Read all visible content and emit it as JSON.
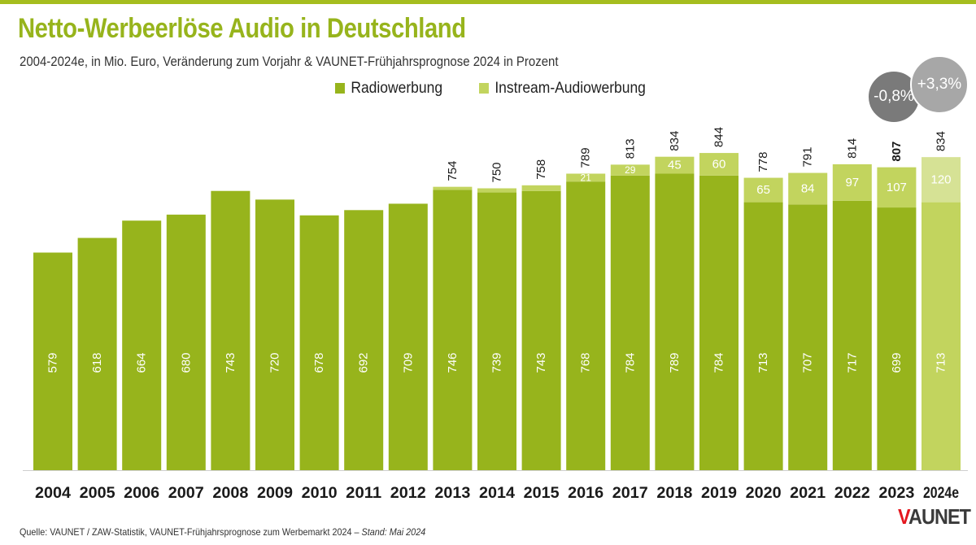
{
  "header": {
    "title": "Netto-Werbeerlöse Audio in Deutschland",
    "subtitle": "2004-2024e, in Mio. Euro, Veränderung zum Vorjahr & VAUNET-Frühjahrsprognose 2024 in Prozent"
  },
  "change_bubbles": {
    "change_2023": "-0,8%",
    "change_2024e": "+3,3%"
  },
  "footer": {
    "source": "Quelle: VAUNET / ZAW-Statistik, VAUNET-Frühjahrsprognose zum Werbemarkt 2024 – ",
    "stand": "Stand: Mai 2024",
    "logo_v": "V",
    "logo_rest": "AUNET"
  },
  "colors": {
    "radio": "#97b41c",
    "instream": "#c2d45e",
    "radio_forecast": "#c2d45e",
    "instream_forecast": "#d6e295",
    "accent_line": "#a5bd1f"
  },
  "chart_data": {
    "type": "bar",
    "stacked": true,
    "categories": [
      "2004",
      "2005",
      "2006",
      "2007",
      "2008",
      "2009",
      "2010",
      "2011",
      "2012",
      "2013",
      "2014",
      "2015",
      "2016",
      "2017",
      "2018",
      "2019",
      "2020",
      "2021",
      "2022",
      "2023",
      "2024e"
    ],
    "series": [
      {
        "name": "Radiowerbung",
        "values": [
          579,
          618,
          664,
          680,
          743,
          720,
          678,
          692,
          709,
          746,
          739,
          743,
          768,
          784,
          789,
          784,
          713,
          707,
          717,
          699,
          713
        ]
      },
      {
        "name": "Instream-Audiowerbung",
        "values": [
          null,
          null,
          null,
          null,
          null,
          null,
          null,
          null,
          null,
          8,
          11,
          15,
          21,
          29,
          45,
          60,
          65,
          84,
          97,
          107,
          120
        ]
      }
    ],
    "segment_labels_instream": [
      null,
      null,
      null,
      null,
      null,
      null,
      null,
      null,
      null,
      null,
      null,
      null,
      "21",
      "29",
      "45",
      "60",
      "65",
      "84",
      "97",
      "107",
      "120"
    ],
    "totals": [
      null,
      null,
      null,
      null,
      null,
      null,
      null,
      null,
      null,
      "754",
      "750",
      "758",
      "789",
      "813",
      "834",
      "844",
      "778",
      "791",
      "814",
      "807",
      "834"
    ],
    "emphasized_total_index": 19,
    "forecast_index": 20,
    "legend_position": "top",
    "ylim": [
      0,
      900
    ],
    "grid": false
  }
}
